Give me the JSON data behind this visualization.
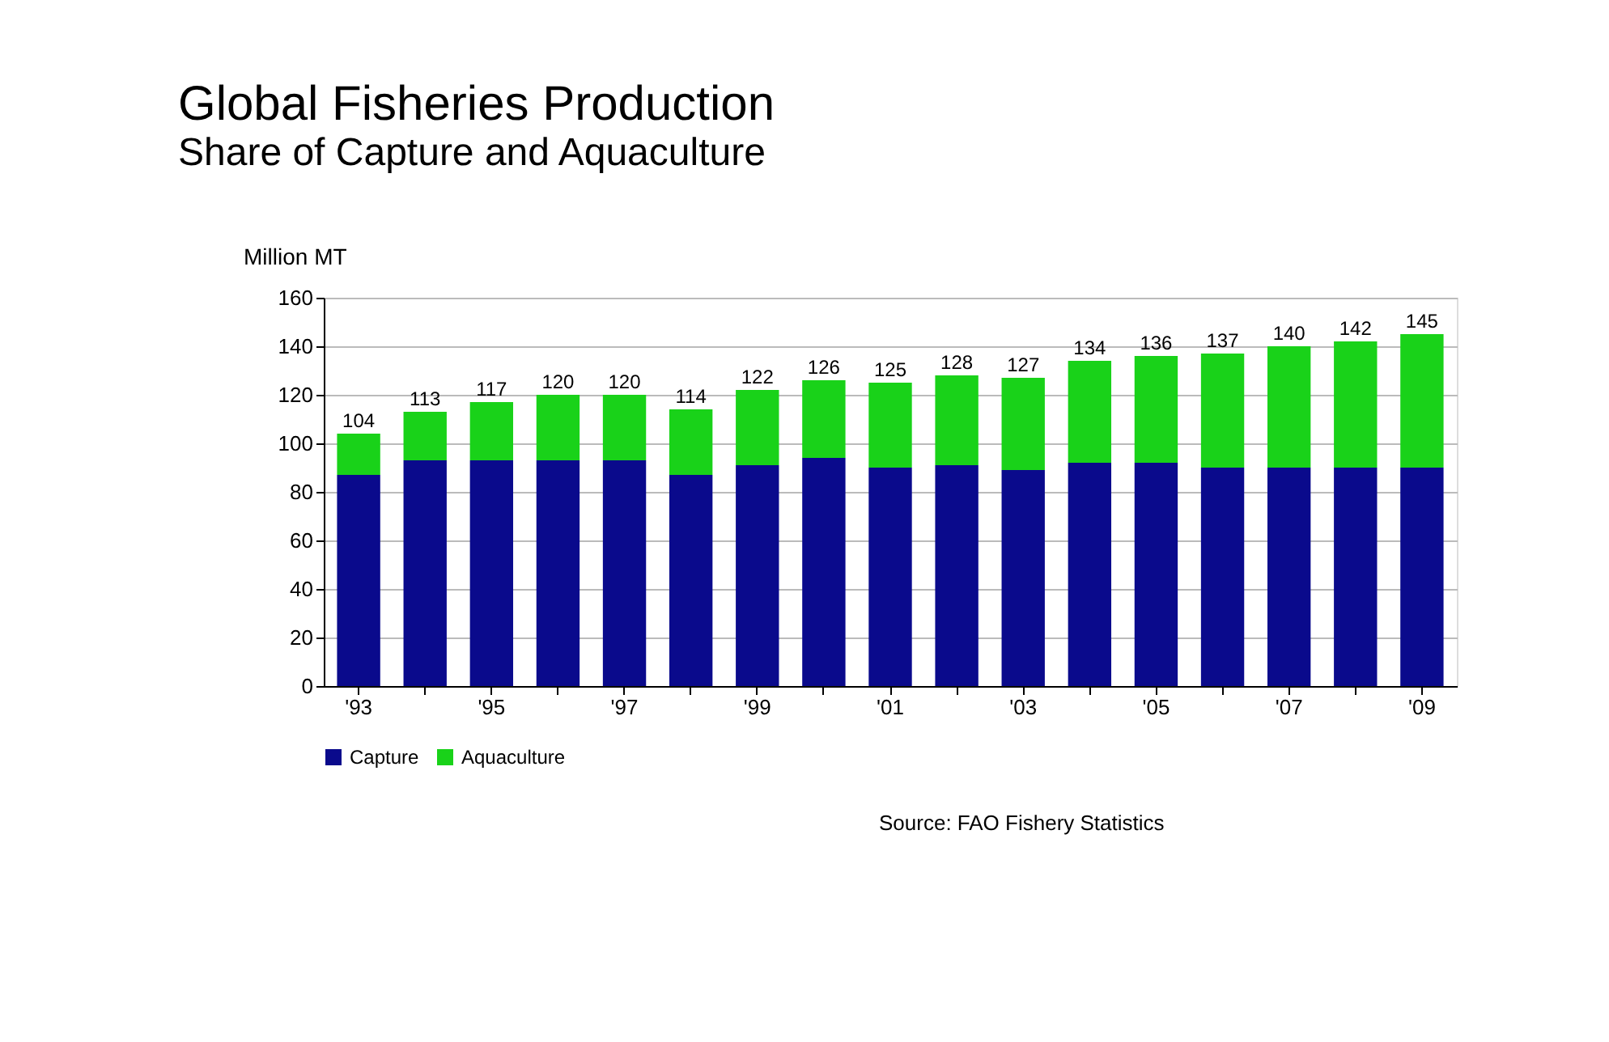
{
  "chart_data": {
    "type": "bar",
    "title": "Global Fisheries Production",
    "subtitle": "Share of Capture and Aquaculture",
    "ylabel": "Million MT",
    "categories": [
      "'93",
      null,
      "'95",
      null,
      "'97",
      null,
      "'99",
      null,
      "'01",
      null,
      "'03",
      null,
      "'05",
      null,
      "'07",
      null,
      "'09"
    ],
    "series": [
      {
        "name": "Capture",
        "color": "#0a0a8c",
        "values": [
          87,
          93,
          93,
          93,
          93,
          87,
          91,
          94,
          90,
          91,
          89,
          92,
          92,
          90,
          90,
          90,
          90
        ]
      },
      {
        "name": "Aquaculture",
        "color": "#19d219",
        "values": [
          17,
          20,
          24,
          27,
          27,
          27,
          31,
          32,
          35,
          37,
          38,
          42,
          44,
          47,
          50,
          52,
          55
        ]
      }
    ],
    "stacked": true,
    "totals": [
      "104",
      "113",
      "117",
      "120",
      "120",
      "114",
      "122",
      "126",
      "125",
      "128",
      "127",
      "134",
      "136",
      "137",
      "140",
      "142",
      "145"
    ],
    "ylim": [
      0,
      160
    ],
    "yticks": [
      0,
      20,
      40,
      60,
      80,
      100,
      120,
      140,
      160
    ],
    "grid": "y",
    "legend": "bottom",
    "annotations": [
      "Source:  FAO Fishery Statistics"
    ]
  }
}
